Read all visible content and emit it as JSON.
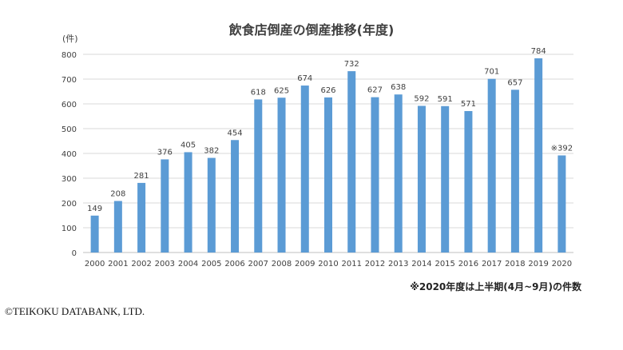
{
  "chart_data": {
    "type": "bar",
    "title": "飲食店倒産の倒産推移(年度)",
    "ylabel": "(件)",
    "xlabel": "",
    "ylim": [
      0,
      800
    ],
    "yticks": [
      0,
      100,
      200,
      300,
      400,
      500,
      600,
      700,
      800
    ],
    "grid": true,
    "bar_color": "#5B9BD5",
    "categories": [
      "2000",
      "2001",
      "2002",
      "2003",
      "2004",
      "2005",
      "2006",
      "2007",
      "2008",
      "2009",
      "2010",
      "2011",
      "2012",
      "2013",
      "2014",
      "2015",
      "2016",
      "2017",
      "2018",
      "2019",
      "2020"
    ],
    "values": [
      149,
      208,
      281,
      376,
      405,
      382,
      454,
      618,
      625,
      674,
      626,
      732,
      627,
      638,
      592,
      591,
      571,
      701,
      657,
      784,
      392
    ],
    "data_labels": [
      "149",
      "208",
      "281",
      "376",
      "405",
      "382",
      "454",
      "618",
      "625",
      "674",
      "626",
      "732",
      "627",
      "638",
      "592",
      "591",
      "571",
      "701",
      "657",
      "784",
      "※392"
    ]
  },
  "footnote": "※2020年度は上半期(4月~9月)の件数",
  "copyright": "©TEIKOKU DATABANK, LTD."
}
